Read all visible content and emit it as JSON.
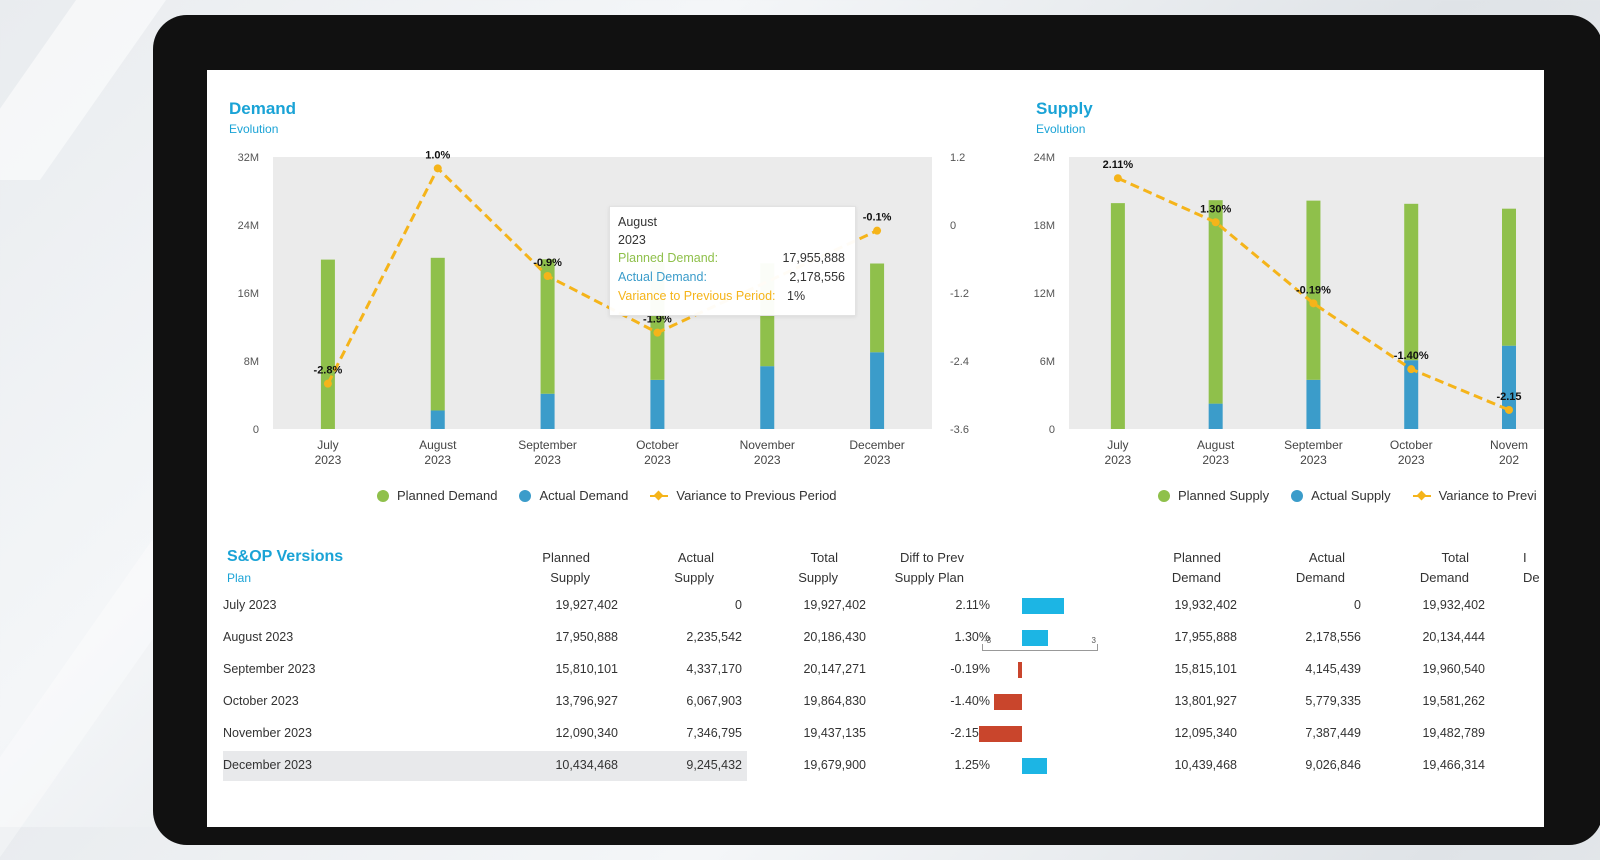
{
  "colors": {
    "planned": "#8fc04b",
    "actual": "#3b9cca",
    "variance": "#f5b41a",
    "accent": "#1aa3d6",
    "positive_bar": "#1cb5e4",
    "negative_bar": "#c9452c"
  },
  "demand": {
    "title": "Demand",
    "subtitle": "Evolution",
    "legend": {
      "planned": "Planned Demand",
      "actual": "Actual Demand",
      "variance": "Variance to Previous Period"
    },
    "tooltip": {
      "month": "August",
      "year": "2023",
      "planned_label": "Planned Demand:",
      "planned_value": "17,955,888",
      "actual_label": "Actual Demand:",
      "actual_value": "2,178,556",
      "variance_label": "Variance to Previous Period:",
      "variance_value": "1%"
    }
  },
  "supply": {
    "title": "Supply",
    "subtitle": "Evolution",
    "legend": {
      "planned": "Planned Supply",
      "actual": "Actual Supply",
      "variance": "Variance to Previ"
    }
  },
  "chart_data": [
    {
      "type": "bar",
      "title": "Demand",
      "subtitle": "Evolution",
      "categories": [
        "July|2023",
        "August|2023",
        "September|2023",
        "October|2023",
        "November|2023",
        "December|2023"
      ],
      "series": [
        {
          "name": "Planned Demand",
          "values": [
            19.93,
            17.96,
            15.82,
            13.8,
            12.1,
            10.44
          ]
        },
        {
          "name": "Actual Demand",
          "values": [
            0,
            2.18,
            4.15,
            5.78,
            7.39,
            9.03
          ]
        },
        {
          "name": "Variance to Previous Period",
          "axis": "right",
          "values": [
            -2.8,
            1.0,
            -0.9,
            -1.9,
            null,
            -0.1
          ]
        }
      ],
      "point_labels": [
        "-2.8%",
        "1.0%",
        "-0.9%",
        "-1.9%",
        "",
        "-0.1%"
      ],
      "stacked": true,
      "ylim": [
        0,
        32
      ],
      "y_ticks": [
        "0",
        "8M",
        "16M",
        "24M",
        "32M"
      ],
      "y2lim": [
        -3.6,
        1.2
      ],
      "y2_ticks": [
        "-3.6",
        "-2.4",
        "-1.2",
        "0",
        "1.2"
      ],
      "legend": "bottom"
    },
    {
      "type": "bar",
      "title": "Supply",
      "subtitle": "Evolution",
      "categories": [
        "July|2023",
        "August|2023",
        "September|2023",
        "October|2023",
        "Novem|202"
      ],
      "series": [
        {
          "name": "Planned Supply",
          "values": [
            19.93,
            17.95,
            15.81,
            13.8,
            12.09
          ]
        },
        {
          "name": "Actual Supply",
          "values": [
            0,
            2.24,
            4.34,
            6.07,
            7.35
          ]
        },
        {
          "name": "Variance to Previ",
          "axis": "hidden",
          "values": [
            2.11,
            1.3,
            -0.19,
            -1.4,
            -2.15
          ]
        }
      ],
      "point_labels": [
        "2.11%",
        "1.30%",
        "-0.19%",
        "-1.40%",
        "-2.15"
      ],
      "stacked": true,
      "ylim": [
        0,
        24
      ],
      "y_ticks": [
        "0",
        "6M",
        "12M",
        "18M",
        "24M"
      ],
      "variance_range": [
        -2.5,
        2.5
      ],
      "legend": "bottom"
    }
  ],
  "table": {
    "title": "S&OP Versions",
    "subtitle": "Plan",
    "headers": [
      {
        "l1": "Planned",
        "l2": "Supply"
      },
      {
        "l1": "Actual",
        "l2": "Supply"
      },
      {
        "l1": "Total",
        "l2": "Supply"
      },
      {
        "l1": "Diff to Prev",
        "l2": "Supply Plan"
      },
      {
        "l1": "Planned",
        "l2": "Demand"
      },
      {
        "l1": "Actual",
        "l2": "Demand"
      },
      {
        "l1": "Total",
        "l2": "Demand"
      },
      {
        "l1": "I",
        "l2": "De"
      }
    ],
    "scale": {
      "min": "-3",
      "mid": "0",
      "max": "3"
    },
    "rows": [
      {
        "name": "July 2023",
        "planned_supply": "19,927,402",
        "actual_supply": "0",
        "total_supply": "19,927,402",
        "diff": "2.11%",
        "diff_value": 2.11,
        "planned_demand": "19,932,402",
        "actual_demand": "0",
        "total_demand": "19,932,402"
      },
      {
        "name": "August 2023",
        "planned_supply": "17,950,888",
        "actual_supply": "2,235,542",
        "total_supply": "20,186,430",
        "diff": "1.30%",
        "diff_value": 1.3,
        "planned_demand": "17,955,888",
        "actual_demand": "2,178,556",
        "total_demand": "20,134,444"
      },
      {
        "name": "September 2023",
        "planned_supply": "15,810,101",
        "actual_supply": "4,337,170",
        "total_supply": "20,147,271",
        "diff": "-0.19%",
        "diff_value": -0.19,
        "planned_demand": "15,815,101",
        "actual_demand": "4,145,439",
        "total_demand": "19,960,540"
      },
      {
        "name": "October 2023",
        "planned_supply": "13,796,927",
        "actual_supply": "6,067,903",
        "total_supply": "19,864,830",
        "diff": "-1.40%",
        "diff_value": -1.4,
        "planned_demand": "13,801,927",
        "actual_demand": "5,779,335",
        "total_demand": "19,581,262"
      },
      {
        "name": "November 2023",
        "planned_supply": "12,090,340",
        "actual_supply": "7,346,795",
        "total_supply": "19,437,135",
        "diff": "-2.15%",
        "diff_value": -2.15,
        "planned_demand": "12,095,340",
        "actual_demand": "7,387,449",
        "total_demand": "19,482,789"
      },
      {
        "name": "December 2023",
        "planned_supply": "10,434,468",
        "actual_supply": "9,245,432",
        "total_supply": "19,679,900",
        "diff": "1.25%",
        "diff_value": 1.25,
        "planned_demand": "10,439,468",
        "actual_demand": "9,026,846",
        "total_demand": "19,466,314"
      }
    ]
  }
}
